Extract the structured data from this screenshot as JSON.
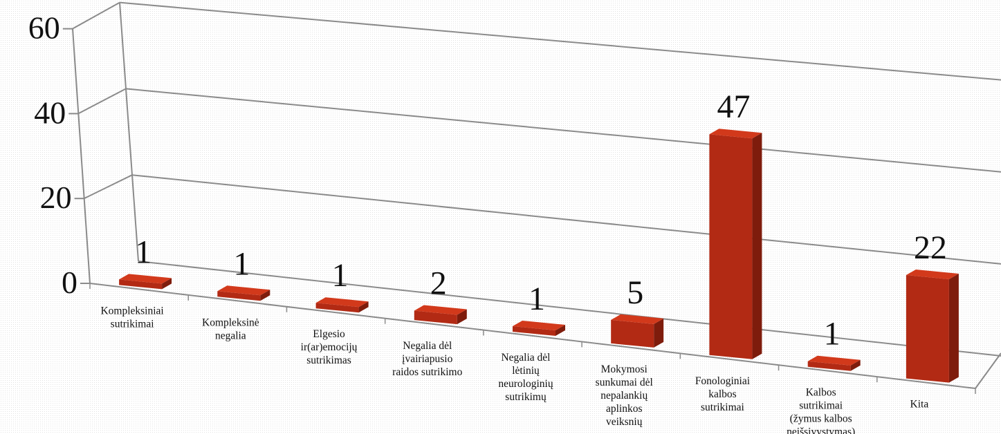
{
  "chart_data": {
    "type": "bar",
    "categories": [
      [
        "Kompleksiniai",
        "sutrikimai"
      ],
      [
        "Kompleksinė",
        "negalia"
      ],
      [
        "Elgesio",
        "ir(ar)emocijų",
        "sutrikimas"
      ],
      [
        "Negalia dėl",
        "įvairiapusio",
        "raidos sutrikimo"
      ],
      [
        "Negalia dėl",
        "lėtinių",
        "neurologinių",
        "sutrikimų"
      ],
      [
        "Mokymosi",
        "sunkumai dėl",
        "nepalankių",
        "aplinkos",
        "veiksnių"
      ],
      [
        "Fonologiniai",
        "kalbos",
        "sutrikimai"
      ],
      [
        "Kalbos",
        "sutrikimai",
        "(žymus kalbos",
        "neišsivystymas)"
      ],
      [
        "Kita"
      ]
    ],
    "values": [
      1,
      1,
      1,
      2,
      1,
      5,
      47,
      1,
      22
    ],
    "data_labels": [
      "1",
      "1",
      "1",
      "2",
      "1",
      "5",
      "47",
      "1",
      "22"
    ],
    "y_ticks": [
      0,
      20,
      40,
      60
    ],
    "ylim": [
      0,
      60
    ],
    "title": "",
    "xlabel": "",
    "ylabel": "",
    "grid": true,
    "legend": "none",
    "colors": {
      "bar_front": "#b22a14",
      "bar_top": "#d2391b",
      "bar_side": "#7e1c0c",
      "axis": "#8a8a8a",
      "text": "#111111"
    }
  }
}
